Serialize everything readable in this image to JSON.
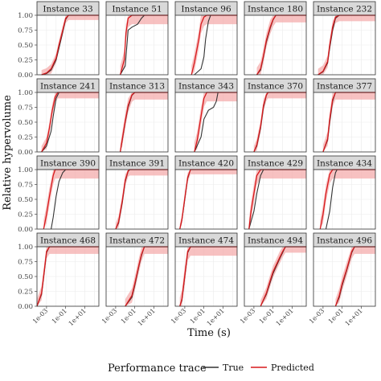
{
  "chart_data": {
    "type": "line",
    "layout": "small multiples, 4 rows x 5 columns",
    "xlabel": "Time (s)",
    "ylabel": "Relative hypervolume",
    "x_scale": "log10",
    "x_range": [
      0.0001,
      300
    ],
    "x_ticks": [
      0.001,
      0.1,
      10
    ],
    "x_tick_labels": [
      "1e-03",
      "1e-01",
      "1e+01"
    ],
    "ylim": [
      0,
      1
    ],
    "y_ticks": [
      0,
      0.25,
      0.5,
      0.75,
      1
    ],
    "y_tick_labels": [
      "0.00",
      "0.25",
      "0.50",
      "0.75",
      "1.00"
    ],
    "grid": true,
    "legend": {
      "title": "Performance trace",
      "position": "bottom",
      "entries": [
        {
          "label": "True",
          "color": "#333333"
        },
        {
          "label": "Predicted",
          "color": "#d7191c"
        }
      ]
    },
    "colors": {
      "true": "#333333",
      "predicted": "#d7191c",
      "ribbon": "#f4a6a6",
      "strip_fill": "#d9d9d9",
      "panel_border": "#333333",
      "grid": "#ebebeb"
    },
    "panels": [
      {
        "title": "Instance 33",
        "true": {
          "x": [
            0.0003,
            0.001,
            0.003,
            0.01,
            0.02,
            0.05,
            0.1,
            0.2,
            300
          ],
          "y": [
            0,
            0.02,
            0.08,
            0.25,
            0.45,
            0.72,
            0.93,
            1,
            1
          ]
        },
        "predicted": {
          "x": [
            0.0003,
            0.001,
            0.003,
            0.01,
            0.02,
            0.05,
            0.1,
            0.2,
            300
          ],
          "y": [
            0,
            0.03,
            0.1,
            0.28,
            0.5,
            0.75,
            0.95,
            1,
            1
          ]
        },
        "band": 0.08
      },
      {
        "title": "Instance 51",
        "true": {
          "x": [
            0.003,
            0.01,
            0.015,
            0.02,
            0.05,
            0.2,
            0.5,
            1,
            300
          ],
          "y": [
            0,
            0.15,
            0.5,
            0.75,
            0.8,
            0.85,
            0.95,
            1,
            1
          ]
        },
        "predicted": {
          "x": [
            0.003,
            0.008,
            0.012,
            0.02,
            0.05,
            0.1,
            300
          ],
          "y": [
            0,
            0.25,
            0.7,
            0.95,
            1,
            1,
            1
          ]
        },
        "band": 0.15
      },
      {
        "title": "Instance 96",
        "true": {
          "x": [
            0.01,
            0.05,
            0.1,
            0.15,
            0.3,
            0.5,
            1,
            300
          ],
          "y": [
            0,
            0.1,
            0.3,
            0.6,
            0.9,
            1,
            1,
            1
          ]
        },
        "predicted": {
          "x": [
            0.005,
            0.01,
            0.03,
            0.05,
            0.1,
            0.2,
            300
          ],
          "y": [
            0,
            0.2,
            0.6,
            0.85,
            0.97,
            1,
            1
          ]
        },
        "band": 0.15
      },
      {
        "title": "Instance 180",
        "true": {
          "x": [
            0.002,
            0.005,
            0.01,
            0.02,
            0.05,
            0.1,
            0.2,
            300
          ],
          "y": [
            0,
            0.08,
            0.3,
            0.55,
            0.78,
            0.92,
            1,
            1
          ]
        },
        "predicted": {
          "x": [
            0.002,
            0.005,
            0.01,
            0.02,
            0.05,
            0.1,
            0.2,
            300
          ],
          "y": [
            0,
            0.1,
            0.32,
            0.58,
            0.8,
            0.93,
            1,
            1
          ]
        },
        "band": 0.12
      },
      {
        "title": "Instance 232",
        "true": {
          "x": [
            0.0003,
            0.001,
            0.003,
            0.005,
            0.01,
            0.02,
            0.05,
            300
          ],
          "y": [
            0,
            0.05,
            0.2,
            0.45,
            0.75,
            0.95,
            1,
            1
          ]
        },
        "predicted": {
          "x": [
            0.0003,
            0.001,
            0.003,
            0.005,
            0.01,
            0.02,
            0.05,
            300
          ],
          "y": [
            0,
            0.06,
            0.22,
            0.5,
            0.8,
            0.97,
            1,
            1
          ]
        },
        "band": 0.1
      },
      {
        "title": "Instance 241",
        "true": {
          "x": [
            0.0003,
            0.001,
            0.003,
            0.005,
            0.01,
            0.02,
            300
          ],
          "y": [
            0,
            0.1,
            0.35,
            0.6,
            0.9,
            1,
            1
          ]
        },
        "predicted": {
          "x": [
            0.0003,
            0.001,
            0.002,
            0.004,
            0.008,
            0.015,
            300
          ],
          "y": [
            0,
            0.15,
            0.4,
            0.7,
            0.92,
            1,
            1
          ]
        },
        "band": 0.1
      },
      {
        "title": "Instance 313",
        "true": {
          "x": [
            0.003,
            0.005,
            0.01,
            0.02,
            0.05,
            0.1,
            300
          ],
          "y": [
            0,
            0.2,
            0.5,
            0.75,
            0.95,
            1,
            1
          ]
        },
        "predicted": {
          "x": [
            0.003,
            0.005,
            0.01,
            0.02,
            0.05,
            0.1,
            300
          ],
          "y": [
            0,
            0.22,
            0.52,
            0.78,
            0.96,
            1,
            1
          ]
        },
        "band": 0.12
      },
      {
        "title": "Instance 343",
        "true": {
          "x": [
            0.01,
            0.05,
            0.1,
            0.3,
            1,
            2,
            3,
            300
          ],
          "y": [
            0,
            0.25,
            0.55,
            0.7,
            0.75,
            0.85,
            1,
            1
          ]
        },
        "predicted": {
          "x": [
            0.01,
            0.02,
            0.05,
            0.1,
            0.2,
            300
          ],
          "y": [
            0,
            0.2,
            0.6,
            0.9,
            1,
            1
          ]
        },
        "band": 0.15
      },
      {
        "title": "Instance 370",
        "true": {
          "x": [
            0.001,
            0.002,
            0.005,
            0.01,
            0.02,
            0.03,
            300
          ],
          "y": [
            0,
            0.1,
            0.4,
            0.75,
            0.95,
            1,
            1
          ]
        },
        "predicted": {
          "x": [
            0.001,
            0.002,
            0.005,
            0.01,
            0.02,
            0.03,
            300
          ],
          "y": [
            0,
            0.12,
            0.43,
            0.78,
            0.96,
            1,
            1
          ]
        },
        "band": 0.1
      },
      {
        "title": "Instance 377",
        "true": {
          "x": [
            0.001,
            0.003,
            0.005,
            0.01,
            0.02,
            300
          ],
          "y": [
            0,
            0.2,
            0.5,
            0.85,
            1,
            1
          ]
        },
        "predicted": {
          "x": [
            0.001,
            0.003,
            0.005,
            0.01,
            0.02,
            300
          ],
          "y": [
            0,
            0.22,
            0.55,
            0.88,
            1,
            1
          ]
        },
        "band": 0.12
      },
      {
        "title": "Instance 390",
        "true": {
          "x": [
            0.003,
            0.005,
            0.01,
            0.02,
            0.05,
            0.1,
            300
          ],
          "y": [
            0,
            0.2,
            0.55,
            0.8,
            0.95,
            1,
            1
          ]
        },
        "predicted": {
          "x": [
            0.0005,
            0.001,
            0.002,
            0.005,
            0.008,
            300
          ],
          "y": [
            0,
            0.25,
            0.55,
            0.9,
            1,
            1
          ]
        },
        "band": 0.15
      },
      {
        "title": "Instance 391",
        "true": {
          "x": [
            0.001,
            0.002,
            0.005,
            0.01,
            0.02,
            0.03,
            300
          ],
          "y": [
            0,
            0.1,
            0.45,
            0.8,
            0.97,
            1,
            1
          ]
        },
        "predicted": {
          "x": [
            0.001,
            0.002,
            0.005,
            0.01,
            0.02,
            0.03,
            300
          ],
          "y": [
            0,
            0.12,
            0.48,
            0.82,
            0.98,
            1,
            1
          ]
        },
        "band": 0.1
      },
      {
        "title": "Instance 420",
        "true": {
          "x": [
            0.0003,
            0.0005,
            0.001,
            0.002,
            0.004,
            300
          ],
          "y": [
            0,
            0.15,
            0.5,
            0.85,
            1,
            1
          ]
        },
        "predicted": {
          "x": [
            0.0003,
            0.0005,
            0.001,
            0.002,
            0.004,
            300
          ],
          "y": [
            0,
            0.16,
            0.52,
            0.87,
            1,
            1
          ]
        },
        "band": 0.08
      },
      {
        "title": "Instance 429",
        "true": {
          "x": [
            0.0003,
            0.001,
            0.002,
            0.005,
            0.01,
            300
          ],
          "y": [
            0,
            0.3,
            0.6,
            0.9,
            1,
            1
          ]
        },
        "predicted": {
          "x": [
            0.0003,
            0.0005,
            0.001,
            0.002,
            0.005,
            300
          ],
          "y": [
            0,
            0.3,
            0.6,
            0.9,
            1,
            1
          ]
        },
        "band": 0.15
      },
      {
        "title": "Instance 434",
        "true": {
          "x": [
            0.002,
            0.005,
            0.01,
            0.02,
            0.03,
            300
          ],
          "y": [
            0,
            0.3,
            0.7,
            0.95,
            1,
            1
          ]
        },
        "predicted": {
          "x": [
            0.0005,
            0.001,
            0.002,
            0.005,
            0.01,
            300
          ],
          "y": [
            0,
            0.25,
            0.6,
            0.92,
            1,
            1
          ]
        },
        "band": 0.15
      },
      {
        "title": "Instance 468",
        "true": {
          "x": [
            0.0001,
            0.0003,
            0.0006,
            0.001,
            0.002,
            300
          ],
          "y": [
            0,
            0.2,
            0.6,
            0.9,
            1,
            1
          ]
        },
        "predicted": {
          "x": [
            0.0001,
            0.0003,
            0.0006,
            0.001,
            0.002,
            300
          ],
          "y": [
            0,
            0.22,
            0.62,
            0.92,
            1,
            1
          ]
        },
        "band": 0.12
      },
      {
        "title": "Instance 472",
        "true": {
          "x": [
            0.01,
            0.05,
            0.1,
            0.3,
            0.5,
            1,
            300
          ],
          "y": [
            0,
            0.15,
            0.35,
            0.7,
            0.85,
            1,
            1
          ]
        },
        "predicted": {
          "x": [
            0.01,
            0.05,
            0.1,
            0.3,
            0.5,
            1,
            300
          ],
          "y": [
            0,
            0.18,
            0.38,
            0.72,
            0.87,
            1,
            1
          ]
        },
        "band": 0.12
      },
      {
        "title": "Instance 474",
        "true": {
          "x": [
            0.0003,
            0.0005,
            0.001,
            0.002,
            0.004,
            300
          ],
          "y": [
            0,
            0.1,
            0.5,
            0.9,
            1,
            1
          ]
        },
        "predicted": {
          "x": [
            0.0003,
            0.0005,
            0.001,
            0.002,
            0.004,
            300
          ],
          "y": [
            0,
            0.12,
            0.52,
            0.92,
            1,
            1
          ]
        },
        "band": 0.15
      },
      {
        "title": "Instance 494",
        "true": {
          "x": [
            0.005,
            0.02,
            0.05,
            0.1,
            0.5,
            1,
            2,
            300
          ],
          "y": [
            0,
            0.2,
            0.4,
            0.55,
            0.8,
            0.9,
            1,
            1
          ]
        },
        "predicted": {
          "x": [
            0.005,
            0.02,
            0.05,
            0.1,
            0.5,
            1,
            2,
            300
          ],
          "y": [
            0,
            0.22,
            0.43,
            0.58,
            0.82,
            0.92,
            1,
            1
          ]
        },
        "band": 0.1
      },
      {
        "title": "Instance 496",
        "true": {
          "x": [
            0.02,
            0.05,
            0.1,
            0.3,
            1,
            2,
            300
          ],
          "y": [
            0,
            0.15,
            0.35,
            0.6,
            0.9,
            1,
            1
          ]
        },
        "predicted": {
          "x": [
            0.02,
            0.05,
            0.1,
            0.3,
            1,
            2,
            300
          ],
          "y": [
            0,
            0.18,
            0.38,
            0.62,
            0.92,
            1,
            1
          ]
        },
        "band": 0.12
      }
    ]
  }
}
